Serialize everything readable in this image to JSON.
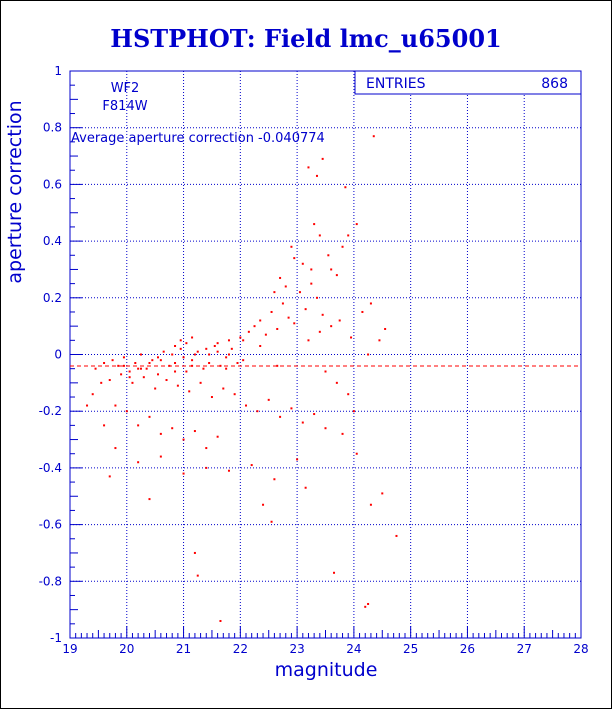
{
  "colors": {
    "axis": "#0000cc",
    "title": "#0000cc",
    "points": "#ff0000",
    "average_line": "#ff0000",
    "background": "#ffffff"
  },
  "chart_data": {
    "type": "scatter",
    "title": "HSTPHOT: Field lmc_u65001",
    "xlabel": "magnitude",
    "ylabel": "aperture correction",
    "xlim": [
      19,
      28
    ],
    "ylim": [
      -1,
      1
    ],
    "x_ticks": [
      "19",
      "20",
      "21",
      "22",
      "23",
      "24",
      "25",
      "26",
      "27",
      "28"
    ],
    "y_ticks": [
      "-1",
      "-0.8",
      "-0.6",
      "-0.4",
      "-0.2",
      "0",
      "0.2",
      "0.4",
      "0.6",
      "0.8",
      "1"
    ],
    "grid": "dotted",
    "stats_box": {
      "label": "ENTRIES",
      "value": "868"
    },
    "camera": "WF2",
    "filter": "F814W",
    "average_label": "Average aperture correction",
    "average_value": -0.040774,
    "average_value_text": "-0.040774",
    "points": [
      [
        19.45,
        -0.05
      ],
      [
        19.6,
        -0.03
      ],
      [
        19.75,
        -0.02
      ],
      [
        19.85,
        -0.04
      ],
      [
        19.95,
        -0.01
      ],
      [
        20.05,
        -0.06
      ],
      [
        20.15,
        -0.03
      ],
      [
        20.25,
        0.0
      ],
      [
        20.35,
        -0.05
      ],
      [
        20.45,
        -0.02
      ],
      [
        20.55,
        -0.07
      ],
      [
        20.65,
        0.01
      ],
      [
        20.75,
        -0.04
      ],
      [
        20.85,
        -0.03
      ],
      [
        20.95,
        0.02
      ],
      [
        21.05,
        -0.06
      ],
      [
        21.15,
        -0.02
      ],
      [
        21.25,
        0.01
      ],
      [
        21.35,
        -0.05
      ],
      [
        21.45,
        -0.03
      ],
      [
        21.55,
        0.03
      ],
      [
        21.65,
        -0.04
      ],
      [
        21.75,
        -0.01
      ],
      [
        21.85,
        0.02
      ],
      [
        21.95,
        -0.03
      ],
      [
        22.05,
        0.05
      ],
      [
        22.15,
        0.08
      ],
      [
        22.25,
        0.1
      ],
      [
        22.35,
        0.12
      ],
      [
        22.45,
        0.07
      ],
      [
        22.55,
        0.15
      ],
      [
        22.65,
        0.09
      ],
      [
        22.75,
        0.18
      ],
      [
        22.85,
        0.13
      ],
      [
        22.95,
        0.11
      ],
      [
        23.05,
        0.22
      ],
      [
        23.15,
        0.16
      ],
      [
        23.25,
        0.25
      ],
      [
        23.35,
        0.2
      ],
      [
        23.45,
        0.14
      ],
      [
        19.7,
        -0.09
      ],
      [
        19.9,
        -0.07
      ],
      [
        20.1,
        -0.1
      ],
      [
        20.3,
        -0.08
      ],
      [
        20.5,
        -0.12
      ],
      [
        20.7,
        -0.09
      ],
      [
        20.9,
        -0.11
      ],
      [
        21.1,
        -0.13
      ],
      [
        21.3,
        -0.1
      ],
      [
        21.5,
        -0.15
      ],
      [
        21.7,
        -0.12
      ],
      [
        21.9,
        -0.14
      ],
      [
        22.1,
        -0.18
      ],
      [
        22.3,
        -0.2
      ],
      [
        22.5,
        -0.16
      ],
      [
        22.7,
        -0.22
      ],
      [
        22.9,
        -0.19
      ],
      [
        23.1,
        -0.24
      ],
      [
        23.3,
        -0.21
      ],
      [
        23.5,
        -0.26
      ],
      [
        19.8,
        -0.18
      ],
      [
        20.0,
        -0.2
      ],
      [
        20.2,
        -0.25
      ],
      [
        20.4,
        -0.22
      ],
      [
        20.6,
        -0.28
      ],
      [
        20.8,
        -0.26
      ],
      [
        21.0,
        -0.3
      ],
      [
        21.2,
        -0.27
      ],
      [
        21.4,
        -0.33
      ],
      [
        21.6,
        -0.29
      ],
      [
        19.6,
        -0.25
      ],
      [
        19.8,
        -0.33
      ],
      [
        20.2,
        -0.38
      ],
      [
        20.6,
        -0.36
      ],
      [
        21.0,
        -0.42
      ],
      [
        21.4,
        -0.4
      ],
      [
        21.8,
        -0.41
      ],
      [
        22.2,
        -0.39
      ],
      [
        22.6,
        -0.44
      ],
      [
        23.0,
        -0.37
      ],
      [
        19.7,
        -0.43
      ],
      [
        20.4,
        -0.51
      ],
      [
        21.2,
        -0.7
      ],
      [
        21.25,
        -0.78
      ],
      [
        21.65,
        -0.94
      ],
      [
        22.55,
        -0.59
      ],
      [
        22.4,
        -0.53
      ],
      [
        23.15,
        -0.47
      ],
      [
        23.65,
        -0.77
      ],
      [
        24.25,
        -0.88
      ],
      [
        24.2,
        -0.89
      ],
      [
        24.3,
        -0.53
      ],
      [
        24.5,
        -0.49
      ],
      [
        24.75,
        -0.64
      ],
      [
        24.05,
        -0.35
      ],
      [
        24.25,
        0.0
      ],
      [
        24.45,
        0.05
      ],
      [
        24.15,
        0.15
      ],
      [
        24.3,
        0.18
      ],
      [
        24.55,
        0.09
      ],
      [
        23.55,
        0.35
      ],
      [
        23.6,
        0.3
      ],
      [
        23.7,
        0.28
      ],
      [
        23.8,
        0.38
      ],
      [
        23.9,
        0.42
      ],
      [
        24.05,
        0.46
      ],
      [
        23.4,
        0.42
      ],
      [
        23.3,
        0.46
      ],
      [
        23.2,
        0.66
      ],
      [
        23.35,
        0.63
      ],
      [
        23.45,
        0.69
      ],
      [
        23.85,
        0.59
      ],
      [
        24.35,
        0.77
      ],
      [
        22.9,
        0.38
      ],
      [
        22.95,
        0.34
      ],
      [
        23.1,
        0.32
      ],
      [
        23.25,
        0.3
      ],
      [
        22.8,
        0.24
      ],
      [
        22.7,
        0.27
      ],
      [
        22.6,
        0.22
      ],
      [
        19.3,
        -0.18
      ],
      [
        19.4,
        -0.14
      ],
      [
        19.55,
        -0.1
      ],
      [
        21.05,
        0.04
      ],
      [
        21.15,
        0.06
      ],
      [
        20.95,
        0.05
      ],
      [
        20.85,
        0.03
      ],
      [
        21.6,
        0.04
      ],
      [
        21.8,
        0.05
      ],
      [
        22.0,
        0.06
      ],
      [
        20.05,
        -0.08
      ],
      [
        20.2,
        -0.05
      ],
      [
        20.4,
        -0.03
      ],
      [
        20.6,
        -0.02
      ],
      [
        20.8,
        0.0
      ],
      [
        21.0,
        -0.01
      ],
      [
        21.2,
        0.0
      ],
      [
        21.4,
        0.02
      ],
      [
        21.6,
        0.01
      ],
      [
        21.8,
        0.0
      ],
      [
        19.95,
        -0.04
      ],
      [
        20.25,
        -0.05
      ],
      [
        20.55,
        -0.01
      ],
      [
        20.85,
        -0.06
      ],
      [
        21.15,
        -0.04
      ],
      [
        21.45,
        0.0
      ],
      [
        21.75,
        -0.05
      ],
      [
        22.05,
        -0.02
      ],
      [
        22.35,
        0.03
      ],
      [
        22.65,
        -0.04
      ],
      [
        23.2,
        0.05
      ],
      [
        23.4,
        0.08
      ],
      [
        23.6,
        0.1
      ],
      [
        23.75,
        0.12
      ],
      [
        23.95,
        0.06
      ],
      [
        23.5,
        -0.06
      ],
      [
        23.7,
        -0.1
      ],
      [
        23.9,
        -0.14
      ],
      [
        24.0,
        -0.2
      ],
      [
        23.8,
        -0.28
      ]
    ]
  }
}
